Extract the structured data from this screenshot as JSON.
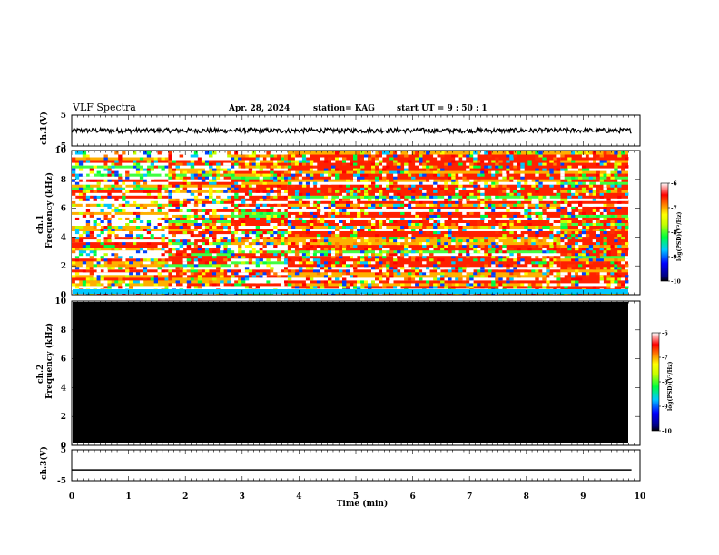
{
  "header": {
    "title": "VLF Spectra",
    "date": "Apr. 28, 2024",
    "station": "station= KAG",
    "start_ut": "start  UT =   9 : 50 : 1"
  },
  "colorbar": {
    "label": "log(PSD)(V²/Hz)",
    "ticks": [
      "-6",
      "-7",
      "-8",
      "-9",
      "-10"
    ],
    "range": [
      -10,
      -6
    ],
    "colors": [
      "#000080",
      "#0000ff",
      "#00c0ff",
      "#00ff80",
      "#c0ff00",
      "#ffff00",
      "#ff8000",
      "#ff0000",
      "#ffffff"
    ]
  },
  "chart_data": [
    {
      "type": "line",
      "panel": "ch1-waveform",
      "ylabel": "ch.1(V)",
      "ylim": [
        -5,
        5
      ],
      "yticks": [
        "5",
        "-5"
      ],
      "description_values": {
        "approx_mean": 0,
        "approx_amplitude": 0.8,
        "x_end_min": 9.85
      }
    },
    {
      "type": "heatmap",
      "panel": "ch1-spectrogram",
      "ylabel": "ch.1\nFrequency (kHz)",
      "ylim": [
        0,
        10
      ],
      "yticks": [
        "0",
        "2",
        "4",
        "6",
        "8",
        "10"
      ],
      "segments_min": [
        {
          "x0": 0.0,
          "x1": 1.7,
          "activity": "low"
        },
        {
          "x0": 1.7,
          "x1": 2.8,
          "activity": "medium"
        },
        {
          "x0": 2.8,
          "x1": 3.8,
          "activity": "mixed"
        },
        {
          "x0": 3.8,
          "x1": 8.6,
          "activity": "high"
        },
        {
          "x0": 8.6,
          "x1": 9.85,
          "activity": "very-high"
        }
      ]
    },
    {
      "type": "heatmap",
      "panel": "ch2-spectrogram",
      "ylabel": "ch.2\nFrequency (kHz)",
      "ylim": [
        0,
        10
      ],
      "yticks": [
        "0",
        "2",
        "4",
        "6",
        "8",
        "10"
      ],
      "fill": "#000000"
    },
    {
      "type": "line",
      "panel": "ch3-waveform",
      "ylabel": "ch.3(V)",
      "ylim": [
        -5,
        5
      ],
      "yticks": [
        "5",
        "-5"
      ],
      "values": [
        {
          "x": 0,
          "y": -1.5
        },
        {
          "x": 9.85,
          "y": -1.5
        }
      ]
    }
  ],
  "xaxis": {
    "label": "Time  (min)",
    "ticks": [
      "0",
      "1",
      "2",
      "3",
      "4",
      "5",
      "6",
      "7",
      "8",
      "9",
      "10"
    ],
    "range": [
      0,
      10
    ]
  }
}
